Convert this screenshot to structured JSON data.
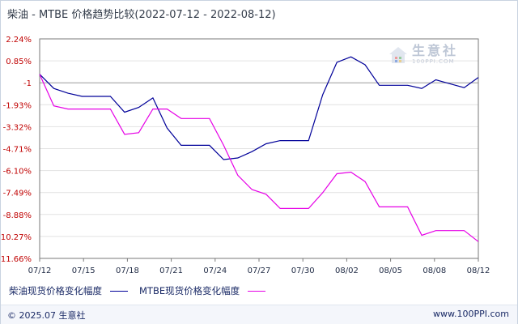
{
  "title": "柴油 - MTBE 价格趋势比较(2022-07-12 - 2022-08-12)",
  "watermark": {
    "name": "生意社",
    "url": "100PPI.COM"
  },
  "legend": [
    {
      "label": "柴油现货价格变化幅度",
      "color": "#000099"
    },
    {
      "label": "MTBE现货价格变化幅度",
      "color": "#e600e6"
    }
  ],
  "footer": {
    "copyright": "© 2025.07 生意社",
    "url": "www.100PPI.com"
  },
  "chart_data": {
    "type": "line",
    "title": "柴油 - MTBE 价格趋势比较(2022-07-12 - 2022-08-12)",
    "x_ticks": [
      "07/12",
      "07/15",
      "07/18",
      "07/21",
      "07/24",
      "07/27",
      "07/30",
      "08/02",
      "08/05",
      "08/08",
      "08/12"
    ],
    "y_ticks": [
      "2.24%",
      "0.85%",
      "-1",
      "-1.93%",
      "-3.32%",
      "-4.71%",
      "-6.10%",
      "-7.49%",
      "-8.88%",
      "-10.27%",
      "-11.66%"
    ],
    "ylim": [
      -11.66,
      2.24
    ],
    "x_range": [
      "2022-07-12",
      "2022-08-12"
    ],
    "grid": "horizontal",
    "legend_position": "bottom",
    "series": [
      {
        "name": "柴油现货价格变化幅度",
        "color": "#000099",
        "points": [
          [
            "2022-07-12",
            0.0
          ],
          [
            "2022-07-13",
            -0.9
          ],
          [
            "2022-07-14",
            -1.2
          ],
          [
            "2022-07-15",
            -1.4
          ],
          [
            "2022-07-16",
            -1.4
          ],
          [
            "2022-07-17",
            -1.4
          ],
          [
            "2022-07-18",
            -2.4
          ],
          [
            "2022-07-19",
            -2.1
          ],
          [
            "2022-07-20",
            -1.5
          ],
          [
            "2022-07-21",
            -3.4
          ],
          [
            "2022-07-22",
            -4.5
          ],
          [
            "2022-07-23",
            -4.5
          ],
          [
            "2022-07-24",
            -4.5
          ],
          [
            "2022-07-25",
            -5.4
          ],
          [
            "2022-07-26",
            -5.3
          ],
          [
            "2022-07-27",
            -4.9
          ],
          [
            "2022-07-28",
            -4.4
          ],
          [
            "2022-07-29",
            -4.2
          ],
          [
            "2022-07-30",
            -4.2
          ],
          [
            "2022-07-31",
            -4.2
          ],
          [
            "2022-08-01",
            -1.3
          ],
          [
            "2022-08-02",
            0.75
          ],
          [
            "2022-08-03",
            1.1
          ],
          [
            "2022-08-04",
            0.6
          ],
          [
            "2022-08-05",
            -0.7
          ],
          [
            "2022-08-06",
            -0.7
          ],
          [
            "2022-08-07",
            -0.7
          ],
          [
            "2022-08-08",
            -0.9
          ],
          [
            "2022-08-09",
            -0.35
          ],
          [
            "2022-08-10",
            -0.6
          ],
          [
            "2022-08-11",
            -0.85
          ],
          [
            "2022-08-12",
            -0.2
          ]
        ]
      },
      {
        "name": "MTBE现货价格变化幅度",
        "color": "#e600e6",
        "points": [
          [
            "2022-07-12",
            0.0
          ],
          [
            "2022-07-13",
            -2.0
          ],
          [
            "2022-07-14",
            -2.2
          ],
          [
            "2022-07-15",
            -2.2
          ],
          [
            "2022-07-16",
            -2.2
          ],
          [
            "2022-07-17",
            -2.2
          ],
          [
            "2022-07-18",
            -3.8
          ],
          [
            "2022-07-19",
            -3.7
          ],
          [
            "2022-07-20",
            -2.2
          ],
          [
            "2022-07-21",
            -2.2
          ],
          [
            "2022-07-22",
            -2.8
          ],
          [
            "2022-07-23",
            -2.8
          ],
          [
            "2022-07-24",
            -2.8
          ],
          [
            "2022-07-25",
            -4.5
          ],
          [
            "2022-07-26",
            -6.4
          ],
          [
            "2022-07-27",
            -7.3
          ],
          [
            "2022-07-28",
            -7.6
          ],
          [
            "2022-07-29",
            -8.5
          ],
          [
            "2022-07-30",
            -8.5
          ],
          [
            "2022-07-31",
            -8.5
          ],
          [
            "2022-08-01",
            -7.5
          ],
          [
            "2022-08-02",
            -6.3
          ],
          [
            "2022-08-03",
            -6.2
          ],
          [
            "2022-08-04",
            -6.8
          ],
          [
            "2022-08-05",
            -8.4
          ],
          [
            "2022-08-06",
            -8.4
          ],
          [
            "2022-08-07",
            -8.4
          ],
          [
            "2022-08-08",
            -10.2
          ],
          [
            "2022-08-09",
            -9.9
          ],
          [
            "2022-08-10",
            -9.9
          ],
          [
            "2022-08-11",
            -9.9
          ],
          [
            "2022-08-12",
            -10.6
          ]
        ]
      }
    ]
  }
}
